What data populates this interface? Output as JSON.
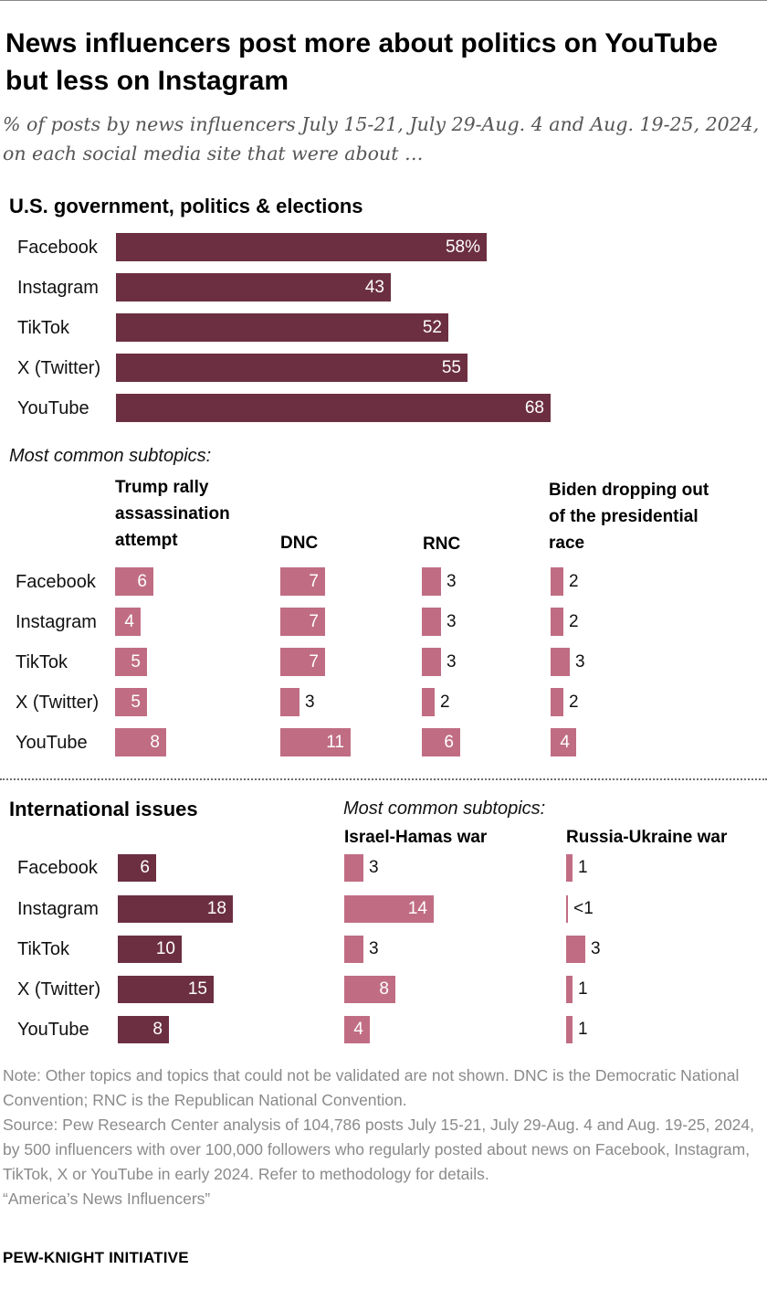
{
  "title": "News influencers post more about politics on YouTube but less on Instagram",
  "subtitle": "% of posts by news influencers July 15-21, July 29-Aug. 4 and Aug. 19-25, 2024, on each social media site that were about …",
  "platforms": [
    "Facebook",
    "Instagram",
    "TikTok",
    "X (Twitter)",
    "YouTube"
  ],
  "colors": {
    "dark": "#6c2f42",
    "light": "#c06d84",
    "text": "#111111",
    "note": "#8a8a8a"
  },
  "labels": {
    "politics_section": "U.S. government, politics & elections",
    "subtopics": "Most common subtopics:",
    "intl_section": "International issues",
    "trump_head": [
      "Trump rally",
      "assassination",
      "attempt"
    ],
    "dnc_head": "DNC",
    "rnc_head": "RNC",
    "biden_head": [
      "Biden dropping out",
      "of the presidential",
      "race"
    ],
    "israel_head": "Israel-Hamas war",
    "russia_head": "Russia-Ukraine war"
  },
  "chart_data": [
    {
      "type": "bar",
      "title": "U.S. government, politics & elections",
      "categories": [
        "Facebook",
        "Instagram",
        "TikTok",
        "X (Twitter)",
        "YouTube"
      ],
      "values": [
        58,
        43,
        52,
        55,
        68
      ],
      "display": [
        "58%",
        "43",
        "52",
        "55",
        "68"
      ]
    },
    {
      "type": "bar",
      "title": "Trump rally assassination attempt",
      "categories": [
        "Facebook",
        "Instagram",
        "TikTok",
        "X (Twitter)",
        "YouTube"
      ],
      "values": [
        6,
        4,
        5,
        5,
        8
      ],
      "display": [
        "6",
        "4",
        "5",
        "5",
        "8"
      ]
    },
    {
      "type": "bar",
      "title": "DNC",
      "categories": [
        "Facebook",
        "Instagram",
        "TikTok",
        "X (Twitter)",
        "YouTube"
      ],
      "values": [
        7,
        7,
        7,
        3,
        11
      ],
      "display": [
        "7",
        "7",
        "7",
        "3",
        "11"
      ]
    },
    {
      "type": "bar",
      "title": "RNC",
      "categories": [
        "Facebook",
        "Instagram",
        "TikTok",
        "X (Twitter)",
        "YouTube"
      ],
      "values": [
        3,
        3,
        3,
        2,
        6
      ],
      "display": [
        "3",
        "3",
        "3",
        "2",
        "6"
      ]
    },
    {
      "type": "bar",
      "title": "Biden dropping out of the presidential race",
      "categories": [
        "Facebook",
        "Instagram",
        "TikTok",
        "X (Twitter)",
        "YouTube"
      ],
      "values": [
        2,
        2,
        3,
        2,
        4
      ],
      "display": [
        "2",
        "2",
        "3",
        "2",
        "4"
      ]
    },
    {
      "type": "bar",
      "title": "International issues",
      "categories": [
        "Facebook",
        "Instagram",
        "TikTok",
        "X (Twitter)",
        "YouTube"
      ],
      "values": [
        6,
        18,
        10,
        15,
        8
      ],
      "display": [
        "6",
        "18",
        "10",
        "15",
        "8"
      ]
    },
    {
      "type": "bar",
      "title": "Israel-Hamas war",
      "categories": [
        "Facebook",
        "Instagram",
        "TikTok",
        "X (Twitter)",
        "YouTube"
      ],
      "values": [
        3,
        14,
        3,
        8,
        4
      ],
      "display": [
        "3",
        "14",
        "3",
        "8",
        "4"
      ]
    },
    {
      "type": "bar",
      "title": "Russia-Ukraine war",
      "categories": [
        "Facebook",
        "Instagram",
        "TikTok",
        "X (Twitter)",
        "YouTube"
      ],
      "values": [
        1,
        0.3,
        3,
        1,
        1
      ],
      "display": [
        "1",
        "<1",
        "3",
        "1",
        "1"
      ]
    }
  ],
  "notes": [
    "Note: Other topics and topics that could not be validated are not shown. DNC is the Democratic National Convention; RNC is the Republican National Convention.",
    "Source: Pew Research Center analysis of 104,786 posts July 15-21, July 29-Aug. 4 and Aug. 19-25, 2024, by 500 influencers with over 100,000 followers who regularly posted about news on Facebook, Instagram, TikTok, X or YouTube in early 2024. Refer to methodology for details.",
    "“America’s News Influencers”"
  ],
  "brand": "PEW-KNIGHT INITIATIVE"
}
